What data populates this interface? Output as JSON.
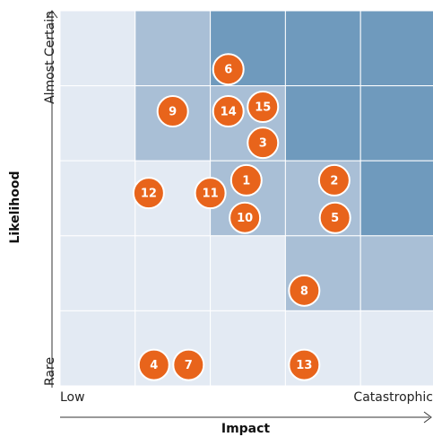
{
  "chart_data": {
    "type": "risk-matrix",
    "x_label": "Impact",
    "y_label": "Likelihood",
    "x_low_label": "Low",
    "x_high_label": "Catastrophic",
    "y_low_label": "Rare",
    "y_high_label": "Almost Certain",
    "xlim": [
      0,
      5
    ],
    "ylim": [
      0,
      5
    ],
    "level_colors": [
      "#e3eaf3",
      "#a9bfd6",
      "#6f9abd"
    ],
    "cells": [
      [
        0,
        1,
        2,
        2,
        2
      ],
      [
        0,
        1,
        1,
        2,
        2
      ],
      [
        0,
        0,
        1,
        1,
        2
      ],
      [
        0,
        0,
        0,
        1,
        1
      ],
      [
        0,
        0,
        0,
        0,
        0
      ]
    ],
    "point_color": "#e8641b",
    "labels": [
      "6",
      "9",
      "14",
      "15",
      "3",
      "1",
      "2",
      "12",
      "11",
      "10",
      "5",
      "8",
      "4",
      "7",
      "13"
    ],
    "x": [
      2.24,
      1.5,
      2.24,
      2.7,
      2.7,
      2.48,
      3.65,
      1.18,
      2.0,
      2.46,
      3.66,
      3.25,
      1.25,
      1.71,
      3.25
    ],
    "y": [
      4.22,
      3.66,
      3.66,
      3.72,
      3.24,
      2.74,
      2.74,
      2.57,
      2.57,
      2.24,
      2.24,
      1.27,
      0.28,
      0.28,
      0.28
    ]
  }
}
